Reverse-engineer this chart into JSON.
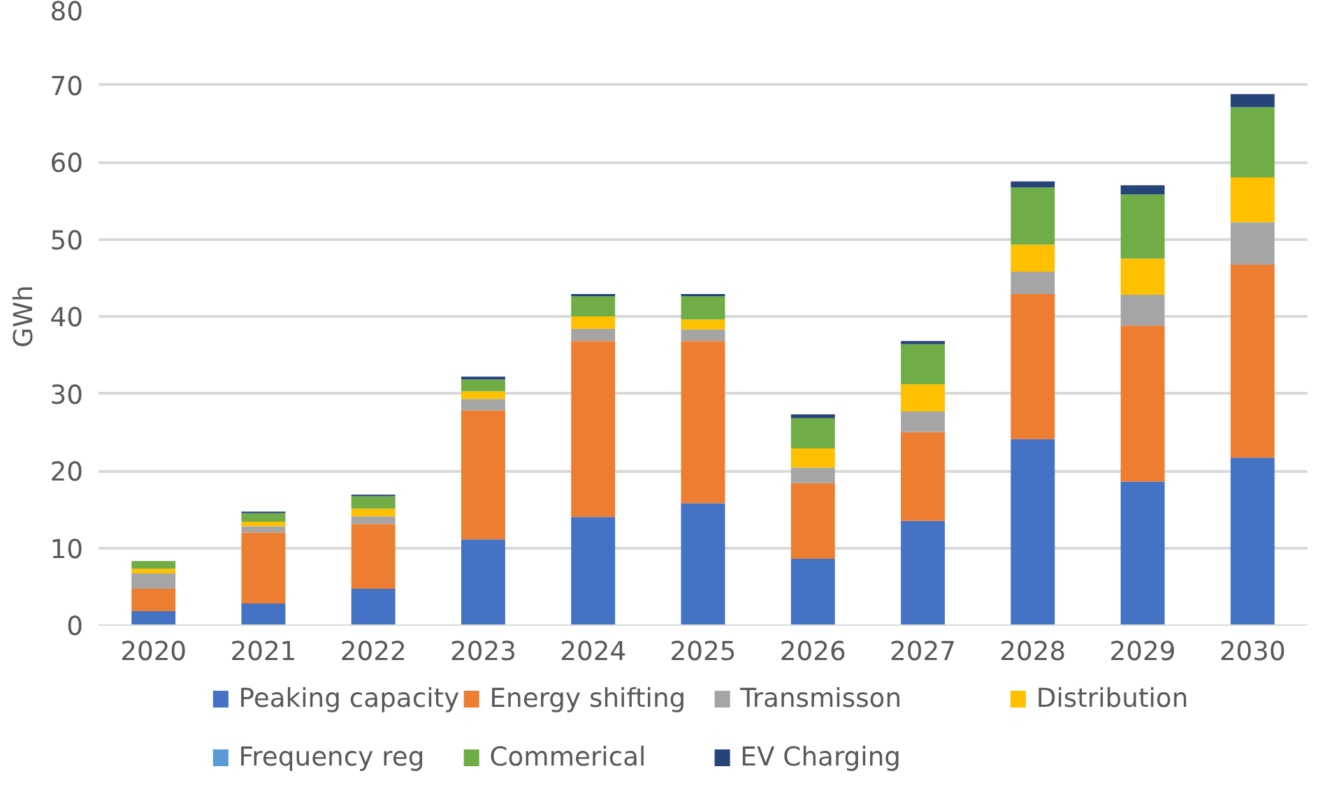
{
  "chart_data": {
    "type": "bar",
    "stacked": true,
    "ylabel": "GWh",
    "categories": [
      "2020",
      "2021",
      "2022",
      "2023",
      "2024",
      "2025",
      "2026",
      "2027",
      "2028",
      "2029",
      "2030"
    ],
    "series": [
      {
        "name": "Peaking capacity",
        "color": "#4472c4",
        "values": [
          1.8,
          2.8,
          4.7,
          11.1,
          14.0,
          15.8,
          8.6,
          13.5,
          24.1,
          18.6,
          21.7
        ]
      },
      {
        "name": "Energy shifting",
        "color": "#ed7d31",
        "values": [
          2.9,
          9.2,
          8.4,
          16.7,
          22.8,
          21.0,
          9.8,
          11.5,
          18.8,
          20.2,
          25.0
        ]
      },
      {
        "name": "Transmisson",
        "color": "#a5a5a5",
        "values": [
          2.0,
          0.8,
          1.0,
          1.5,
          1.6,
          1.5,
          2.0,
          2.7,
          2.9,
          4.0,
          5.5
        ]
      },
      {
        "name": "Distribution",
        "color": "#ffc000",
        "values": [
          0.6,
          0.6,
          1.0,
          1.0,
          1.6,
          1.3,
          2.5,
          3.5,
          3.5,
          4.7,
          5.8
        ]
      },
      {
        "name": "Frequency reg",
        "color": "#5b9bd5",
        "values": [
          0,
          0,
          0,
          0,
          0,
          0,
          0,
          0,
          0,
          0,
          0
        ]
      },
      {
        "name": "Commerical",
        "color": "#70ad47",
        "values": [
          1.0,
          1.1,
          1.6,
          1.5,
          2.6,
          3.0,
          3.9,
          5.2,
          7.4,
          8.3,
          9.1
        ]
      },
      {
        "name": "EV Charging",
        "color": "#264478",
        "values": [
          0,
          0.2,
          0.2,
          0.4,
          0.3,
          0.3,
          0.5,
          0.4,
          0.8,
          1.2,
          1.7
        ]
      }
    ],
    "ylim": [
      0,
      80
    ],
    "yticks": [
      0,
      10,
      20,
      30,
      40,
      50,
      60,
      70,
      80
    ],
    "grid": "y",
    "legend": "bottom"
  }
}
